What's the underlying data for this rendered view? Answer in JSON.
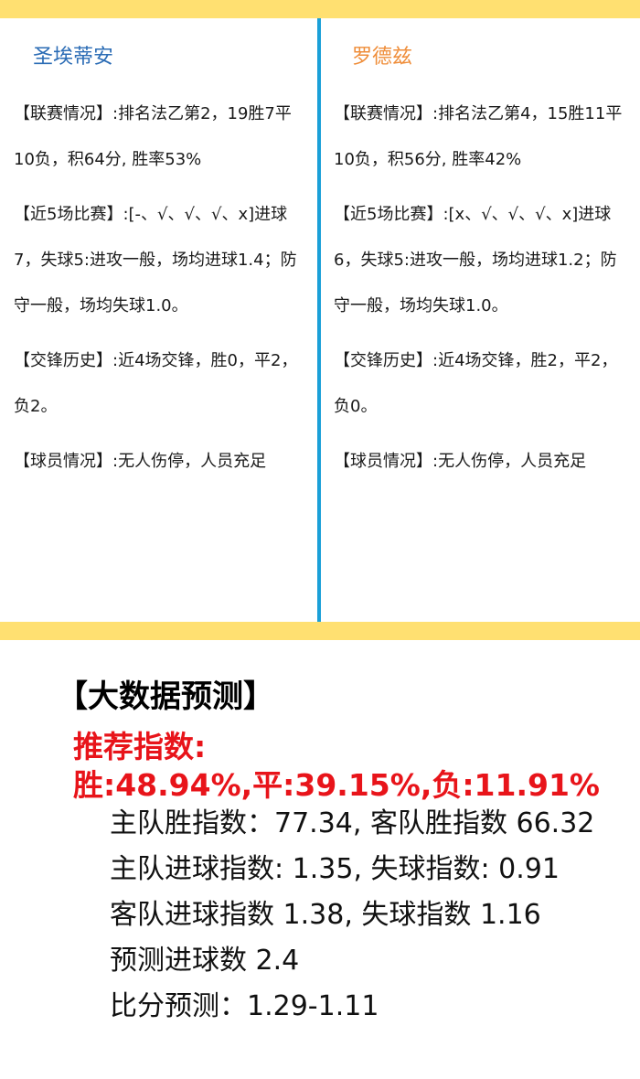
{
  "home_team": {
    "name": "圣埃蒂安",
    "league": "【联赛情况】:排名法乙第2，19胜7平10负，积64分, 胜率53%",
    "recent": "【近5场比赛】:[-、√、√、√、x]进球7，失球5:进攻一般，场均进球1.4；防守一般，场均失球1.0。",
    "h2h": "【交锋历史】:近4场交锋，胜0，平2，负2。",
    "players": "【球员情况】:无人伤停，人员充足"
  },
  "away_team": {
    "name": "罗德兹",
    "league": "【联赛情况】:排名法乙第4，15胜11平10负，积56分, 胜率42%",
    "recent": "【近5场比赛】:[x、√、√、√、x]进球6，失球5:进攻一般，场均进球1.2；防守一般，场均失球1.0。",
    "h2h": "【交锋历史】:近4场交锋，胜2，平2，负0。",
    "players": "【球员情况】:无人伤停，人员充足"
  },
  "prediction": {
    "title": "【大数据预测】",
    "recommend_label": "推荐指数:",
    "recommend_values": "胜:48.94%,平:39.15%,负:11.91%",
    "lines": [
      "主队胜指数：77.34, 客队胜指数 66.32",
      "主队进球指数: 1.35, 失球指数: 0.91",
      "客队进球指数 1.38, 失球指数 1.16",
      "预测进球数 2.4",
      "比分预测：1.29-1.11"
    ]
  },
  "colors": {
    "bar": "#ffe071",
    "divider": "#1aa0d8",
    "home_name": "#2b6cb5",
    "away_name": "#ef8d39",
    "recommend": "#e8141a"
  }
}
